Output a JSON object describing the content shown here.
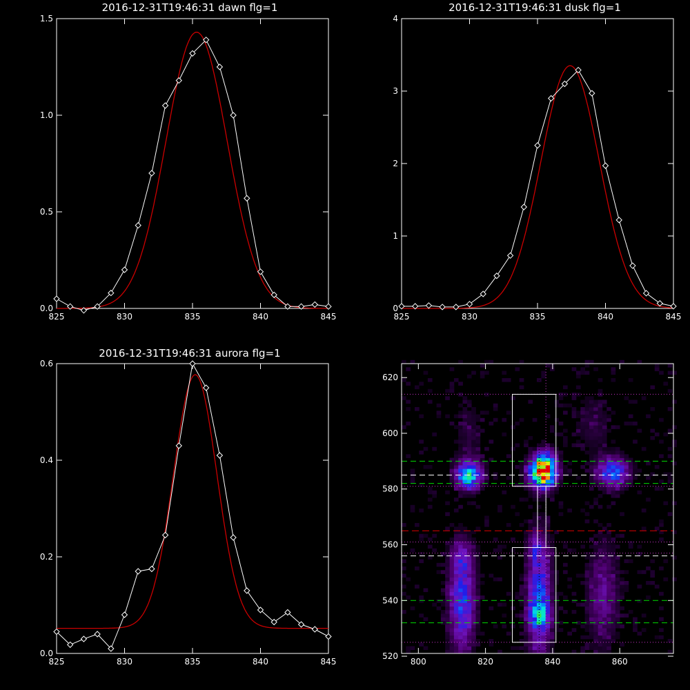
{
  "colors": {
    "background": "#000000",
    "axes": "#ffffff",
    "observed": "#ffffff",
    "fit": "#cc0000",
    "green_lines": "#00dd00",
    "red_line": "#dd0000",
    "magenta_dotted": "#cc33cc"
  },
  "chart_data": [
    {
      "type": "line",
      "panel": "top-left",
      "title": "2016-12-31T19:46:31 dawn flg=1",
      "xlabel": "",
      "ylabel": "",
      "xlim": [
        825,
        845
      ],
      "ylim": [
        0,
        1.5
      ],
      "xticks": [
        825,
        830,
        835,
        840,
        845
      ],
      "yticks": [
        0.0,
        0.5,
        1.0,
        1.5
      ],
      "yticklabels": [
        "0.0",
        "0.5",
        "1.0",
        "1.5"
      ],
      "observed": {
        "marker": "diamond",
        "x": [
          825,
          826,
          827,
          828,
          829,
          830,
          831,
          832,
          833,
          834,
          835,
          836,
          837,
          838,
          839,
          840,
          841,
          842,
          843,
          844,
          845
        ],
        "y": [
          0.05,
          0.01,
          -0.01,
          0.01,
          0.08,
          0.2,
          0.43,
          0.7,
          1.05,
          1.18,
          1.32,
          1.39,
          1.25,
          1.0,
          0.57,
          0.19,
          0.07,
          0.01,
          0.01,
          0.02,
          0.01
        ]
      },
      "fit": {
        "model": "gaussian",
        "amplitude": 1.43,
        "center": 835.3,
        "sigma": 2.25,
        "baseline": 0.0
      }
    },
    {
      "type": "line",
      "panel": "top-right",
      "title": "2016-12-31T19:46:31 dusk flg=1",
      "xlabel": "",
      "ylabel": "",
      "xlim": [
        825,
        845
      ],
      "ylim": [
        0,
        4
      ],
      "xticks": [
        825,
        830,
        835,
        840,
        845
      ],
      "yticks": [
        0,
        1,
        2,
        3,
        4
      ],
      "yticklabels": [
        "0",
        "1",
        "2",
        "3",
        "4"
      ],
      "observed": {
        "marker": "diamond",
        "x": [
          825,
          826,
          827,
          828,
          829,
          830,
          831,
          832,
          833,
          834,
          835,
          836,
          837,
          838,
          839,
          840,
          841,
          842,
          843,
          844,
          845
        ],
        "y": [
          0.03,
          0.03,
          0.04,
          0.02,
          0.02,
          0.06,
          0.2,
          0.45,
          0.73,
          1.4,
          2.25,
          2.9,
          3.1,
          3.29,
          2.97,
          1.97,
          1.22,
          0.59,
          0.21,
          0.07,
          0.03
        ]
      },
      "fit": {
        "model": "gaussian",
        "amplitude": 3.35,
        "center": 837.4,
        "sigma": 2.15,
        "baseline": 0.0
      }
    },
    {
      "type": "line",
      "panel": "bottom-left",
      "title": "2016-12-31T19:46:31 aurora flg=1",
      "xlabel": "",
      "ylabel": "",
      "xlim": [
        825,
        845
      ],
      "ylim": [
        0,
        0.6
      ],
      "xticks": [
        825,
        830,
        835,
        840,
        845
      ],
      "yticks": [
        0.0,
        0.2,
        0.4,
        0.6
      ],
      "yticklabels": [
        "0.0",
        "0.2",
        "0.4",
        "0.6"
      ],
      "observed": {
        "marker": "diamond",
        "x": [
          825,
          826,
          827,
          828,
          829,
          830,
          831,
          832,
          833,
          834,
          835,
          836,
          837,
          838,
          839,
          840,
          841,
          842,
          843,
          844,
          845
        ],
        "y": [
          0.045,
          0.018,
          0.03,
          0.04,
          0.01,
          0.08,
          0.17,
          0.175,
          0.245,
          0.43,
          0.6,
          0.55,
          0.41,
          0.24,
          0.13,
          0.09,
          0.065,
          0.085,
          0.06,
          0.05,
          0.035
        ]
      },
      "fit": {
        "model": "gaussian",
        "amplitude": 0.525,
        "center": 835.2,
        "sigma": 1.6,
        "baseline": 0.052
      }
    },
    {
      "type": "heatmap",
      "panel": "bottom-right",
      "title": "",
      "xlabel": "",
      "ylabel": "",
      "xlim": [
        795,
        876
      ],
      "ylim": [
        521,
        625
      ],
      "xticks": [
        800,
        820,
        840,
        860
      ],
      "yticks": [
        520,
        540,
        560,
        580,
        600,
        620
      ],
      "cell": 1.3,
      "colormap": "rainbow",
      "blobs": [
        {
          "x": 815,
          "y": 585,
          "sx": 2.6,
          "sy": 3.3,
          "v": 0.58
        },
        {
          "x": 837,
          "y": 586,
          "sx": 2.6,
          "sy": 3.6,
          "v": 1.0
        },
        {
          "x": 838,
          "y": 591,
          "sx": 2.0,
          "sy": 2.5,
          "v": 0.25
        },
        {
          "x": 858,
          "y": 586,
          "sx": 3.2,
          "sy": 3.6,
          "v": 0.42
        },
        {
          "x": 813,
          "y": 540,
          "sx": 2.6,
          "sy": 12.0,
          "v": 0.38
        },
        {
          "x": 813,
          "y": 556,
          "sx": 2.2,
          "sy": 4.0,
          "v": 0.12
        },
        {
          "x": 836,
          "y": 541,
          "sx": 2.4,
          "sy": 14.0,
          "v": 0.4
        },
        {
          "x": 836,
          "y": 535,
          "sx": 2.0,
          "sy": 3.5,
          "v": 0.25
        },
        {
          "x": 835,
          "y": 559,
          "sx": 1.6,
          "sy": 3.0,
          "v": 0.15
        },
        {
          "x": 855,
          "y": 542,
          "sx": 3.2,
          "sy": 12.0,
          "v": 0.18
        },
        {
          "x": 852,
          "y": 603,
          "sx": 4.0,
          "sy": 8.0,
          "v": 0.07
        },
        {
          "x": 815,
          "y": 600,
          "sx": 3.0,
          "sy": 8.0,
          "v": 0.07
        }
      ],
      "overlays": {
        "white_boxes": [
          {
            "x": [
              828,
              841
            ],
            "y": [
              581,
              614
            ]
          },
          {
            "x": [
              828,
              841
            ],
            "y": [
              525,
              559
            ]
          }
        ],
        "white_vlines": [
          835.5,
          838.0
        ],
        "white_vlines_y": [
          559,
          581
        ],
        "white_dashed_y": [
          585,
          556
        ],
        "green_dashed_y": [
          590,
          582,
          540,
          532
        ],
        "red_dashed_y": [
          565
        ],
        "magenta_dotted_y": [
          614,
          581,
          561,
          557,
          525
        ],
        "magenta_dotted_x": [
          838
        ],
        "black_dotted_x": [
          836
        ]
      }
    }
  ]
}
